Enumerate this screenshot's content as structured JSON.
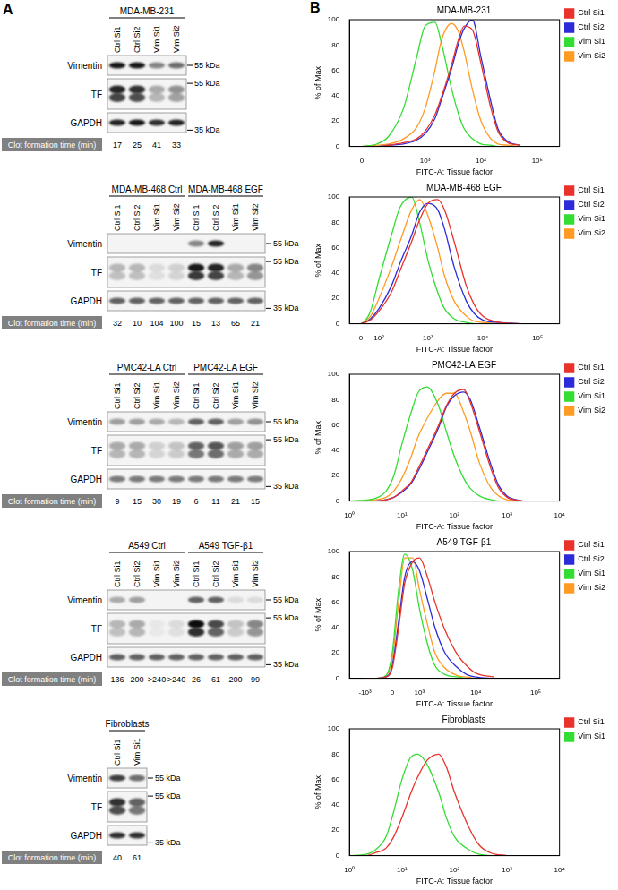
{
  "panel_a": {
    "label": "A",
    "clot_label": "Clot formation time (min)",
    "blots": [
      {
        "groups": [
          {
            "name": "MDA-MB-231",
            "lanes": [
              "Ctrl Si1",
              "Ctrl Si2",
              "Vim Si1",
              "Vim Si2"
            ]
          }
        ],
        "rows": [
          {
            "name": "Vimentin",
            "size_marker": "55 kDa",
            "band_intensity": [
              0.9,
              0.9,
              0.45,
              0.55
            ]
          },
          {
            "name": "TF",
            "size_marker": "55 kDa",
            "band_intensity": [
              0.85,
              0.8,
              0.3,
              0.4
            ]
          },
          {
            "name": "GAPDH",
            "size_marker": "35 kDa",
            "band_intensity": [
              0.85,
              0.9,
              0.8,
              0.85
            ]
          }
        ],
        "clot_times": [
          17,
          25,
          41,
          33
        ]
      },
      {
        "groups": [
          {
            "name": "MDA-MB-468 Ctrl",
            "lanes": [
              "Ctrl Si1",
              "Ctrl Si2",
              "Vim Si1",
              "Vim Si2"
            ]
          },
          {
            "name": "MDA-MB-468 EGF",
            "lanes": [
              "Ctrl Si1",
              "Ctrl Si2",
              "Vim Si1",
              "Vim Si2"
            ]
          }
        ],
        "rows": [
          {
            "name": "Vimentin",
            "size_marker": "55 kDa",
            "band_intensity": [
              0,
              0,
              0,
              0,
              0.45,
              0.85,
              0,
              0
            ]
          },
          {
            "name": "TF",
            "size_marker": "55 kDa",
            "band_intensity": [
              0.25,
              0.25,
              0.1,
              0.15,
              0.9,
              0.85,
              0.3,
              0.45
            ]
          },
          {
            "name": "GAPDH",
            "size_marker": "35 kDa",
            "band_intensity": [
              0.6,
              0.6,
              0.6,
              0.6,
              0.6,
              0.6,
              0.6,
              0.6
            ]
          }
        ],
        "clot_times": [
          32,
          10,
          104,
          100,
          15,
          13,
          65,
          21
        ]
      },
      {
        "groups": [
          {
            "name": "PMC42-LA Ctrl",
            "lanes": [
              "Ctrl Si1",
              "Ctrl Si2",
              "Vim Si1",
              "Vim Si2"
            ]
          },
          {
            "name": "PMC42-LA EGF",
            "lanes": [
              "Ctrl Si1",
              "Ctrl Si2",
              "Vim Si1",
              "Vim Si2"
            ]
          }
        ],
        "rows": [
          {
            "name": "Vimentin",
            "size_marker": "55 kDa",
            "band_intensity": [
              0.35,
              0.35,
              0.3,
              0.25,
              0.6,
              0.6,
              0.35,
              0.4
            ]
          },
          {
            "name": "TF",
            "size_marker": "55 kDa",
            "band_intensity": [
              0.3,
              0.3,
              0.15,
              0.2,
              0.6,
              0.65,
              0.35,
              0.35
            ]
          },
          {
            "name": "GAPDH",
            "size_marker": "35 kDa",
            "band_intensity": [
              0.5,
              0.5,
              0.5,
              0.5,
              0.5,
              0.5,
              0.5,
              0.5
            ]
          }
        ],
        "clot_times": [
          9,
          15,
          30,
          19,
          6,
          11,
          21,
          15
        ]
      },
      {
        "groups": [
          {
            "name": "A549 Ctrl",
            "lanes": [
              "Ctrl Si1",
              "Ctrl Si2",
              "Vim Si1",
              "Vim Si2"
            ]
          },
          {
            "name": "A549 TGF-β1",
            "lanes": [
              "Ctrl Si1",
              "Ctrl Si2",
              "Vim Si1",
              "Vim Si2"
            ]
          }
        ],
        "rows": [
          {
            "name": "Vimentin",
            "size_marker": "55 kDa",
            "band_intensity": [
              0.3,
              0.35,
              0,
              0,
              0.6,
              0.6,
              0.1,
              0.1
            ]
          },
          {
            "name": "TF",
            "size_marker": "55 kDa",
            "band_intensity": [
              0.25,
              0.3,
              0.05,
              0.1,
              0.95,
              0.7,
              0.2,
              0.45
            ]
          },
          {
            "name": "GAPDH",
            "size_marker": "35 kDa",
            "band_intensity": [
              0.6,
              0.6,
              0.6,
              0.6,
              0.6,
              0.6,
              0.6,
              0.6
            ]
          }
        ],
        "clot_times": [
          136,
          200,
          ">240",
          ">240",
          26,
          61,
          200,
          99
        ]
      },
      {
        "groups": [
          {
            "name": "Fibroblasts",
            "lanes": [
              "Ctrl Si1",
              "Vim Si1"
            ]
          }
        ],
        "rows": [
          {
            "name": "Vimentin",
            "size_marker": "55 kDa",
            "band_intensity": [
              0.75,
              0.55
            ]
          },
          {
            "name": "TF",
            "size_marker": "55 kDa",
            "band_intensity": [
              0.8,
              0.6
            ]
          },
          {
            "name": "GAPDH",
            "size_marker": "35 kDa",
            "band_intensity": [
              0.8,
              0.8
            ]
          }
        ],
        "clot_times": [
          40,
          61
        ]
      }
    ]
  },
  "panel_b": {
    "label": "B"
  },
  "chart_data": [
    {
      "type": "line",
      "title": "MDA-MB-231",
      "x_label": "FITC-A: Tissue factor",
      "y_label": "% of Max",
      "x": [
        0,
        100,
        200,
        400,
        700,
        1000,
        1500,
        2000,
        3000,
        4000,
        5000,
        7000,
        10000,
        15000,
        20000,
        30000,
        50000
      ],
      "series": [
        {
          "name": "Ctrl Si1",
          "color": "#e8322b",
          "values": [
            0,
            0,
            1,
            3,
            6,
            12,
            25,
            40,
            65,
            85,
            95,
            92,
            65,
            30,
            12,
            3,
            1
          ]
        },
        {
          "name": "Ctrl Si2",
          "color": "#2b2bd9",
          "values": [
            0,
            0,
            1,
            2,
            5,
            10,
            22,
            38,
            62,
            82,
            93,
            100,
            70,
            35,
            14,
            4,
            1
          ]
        },
        {
          "name": "Vim Si1",
          "color": "#33dd33",
          "values": [
            0,
            2,
            8,
            30,
            70,
            95,
            98,
            80,
            45,
            25,
            14,
            6,
            2,
            1,
            0,
            0,
            0
          ]
        },
        {
          "name": "Vim Si2",
          "color": "#ff9a22",
          "values": [
            0,
            1,
            2,
            6,
            15,
            30,
            60,
            85,
            97,
            90,
            75,
            45,
            20,
            6,
            2,
            1,
            0
          ]
        }
      ],
      "xlim": [
        -80,
        250000
      ],
      "xticks": [
        0,
        {
          "value": 1000,
          "label": "10³"
        },
        {
          "value": 10000,
          "label": "10⁴"
        },
        {
          "value": 100000,
          "label": "10⁵"
        }
      ],
      "ylim": [
        0,
        100
      ],
      "yticks": [
        0,
        20,
        40,
        60,
        80,
        100
      ],
      "log": "x",
      "grid": false,
      "legend": "right"
    },
    {
      "type": "line",
      "title": "MDA-MB-468 EGF",
      "x_label": "FITC-A: Tissue factor",
      "y_label": "% of Max",
      "x": [
        0,
        20,
        50,
        100,
        200,
        300,
        500,
        700,
        1000,
        1500,
        2000,
        3000,
        5000,
        7000,
        10000,
        20000,
        50000
      ],
      "series": [
        {
          "name": "Ctrl Si1",
          "color": "#e8322b",
          "values": [
            0,
            1,
            3,
            10,
            25,
            42,
            65,
            82,
            95,
            98,
            90,
            65,
            30,
            15,
            6,
            1,
            0
          ]
        },
        {
          "name": "Ctrl Si2",
          "color": "#2b2bd9",
          "values": [
            0,
            1,
            4,
            12,
            30,
            48,
            70,
            88,
            95,
            90,
            75,
            45,
            18,
            8,
            3,
            1,
            0
          ]
        },
        {
          "name": "Vim Si1",
          "color": "#33dd33",
          "values": [
            0,
            2,
            10,
            35,
            70,
            92,
            100,
            80,
            50,
            25,
            12,
            4,
            1,
            0,
            0,
            0,
            0
          ]
        },
        {
          "name": "Vim Si2",
          "color": "#ff9a22",
          "values": [
            0,
            2,
            6,
            20,
            45,
            65,
            90,
            98,
            85,
            60,
            38,
            18,
            6,
            2,
            1,
            0,
            0
          ]
        }
      ],
      "xlim": [
        -60,
        250000
      ],
      "xticks": [
        0,
        {
          "value": 100,
          "label": "10²"
        },
        {
          "value": 1000,
          "label": "10³"
        },
        {
          "value": 10000,
          "label": "10⁴"
        },
        {
          "value": 100000,
          "label": "10⁵"
        }
      ],
      "ylim": [
        0,
        100
      ],
      "yticks": [
        0,
        20,
        40,
        60,
        80,
        100
      ],
      "log": "x",
      "grid": false,
      "legend": "right"
    },
    {
      "type": "line",
      "title": "PMC42-LA EGF",
      "x_label": "FITC-A: Tissue factor",
      "y_label": "% of Max",
      "x": [
        1,
        3,
        5,
        7,
        10,
        15,
        20,
        30,
        50,
        70,
        100,
        150,
        200,
        300,
        500,
        700,
        1000,
        2000
      ],
      "series": [
        {
          "name": "Ctrl Si1",
          "color": "#e8322b",
          "values": [
            0,
            0,
            1,
            3,
            8,
            15,
            25,
            40,
            60,
            75,
            85,
            88,
            78,
            55,
            25,
            10,
            3,
            0
          ]
        },
        {
          "name": "Ctrl Si2",
          "color": "#2b2bd9",
          "values": [
            0,
            0,
            1,
            3,
            7,
            14,
            23,
            38,
            58,
            74,
            83,
            86,
            80,
            58,
            28,
            12,
            4,
            0
          ]
        },
        {
          "name": "Vim Si1",
          "color": "#33dd33",
          "values": [
            0,
            2,
            8,
            20,
            45,
            70,
            85,
            90,
            75,
            55,
            35,
            18,
            10,
            4,
            1,
            0,
            0,
            0
          ]
        },
        {
          "name": "Vim Si2",
          "color": "#ff9a22",
          "values": [
            0,
            1,
            3,
            8,
            18,
            35,
            50,
            65,
            80,
            85,
            85,
            70,
            55,
            30,
            10,
            4,
            1,
            0
          ]
        }
      ],
      "xlim": [
        1,
        10000
      ],
      "xticks": [
        {
          "value": 1,
          "label": "10⁰"
        },
        {
          "value": 10,
          "label": "10¹"
        },
        {
          "value": 100,
          "label": "10²"
        },
        {
          "value": 1000,
          "label": "10³"
        },
        {
          "value": 10000,
          "label": "10⁴"
        }
      ],
      "ylim": [
        0,
        100
      ],
      "yticks": [
        0,
        20,
        40,
        60,
        80,
        100
      ],
      "log": "x",
      "grid": false,
      "legend": "right"
    },
    {
      "type": "line",
      "title": "A549 TGF-β1",
      "x_label": "FITC-A: Tissue factor",
      "y_label": "% of Max",
      "x": [
        -1000,
        -500,
        -200,
        0,
        200,
        400,
        700,
        1000,
        1500,
        2000,
        3000,
        5000,
        7000,
        10000,
        20000
      ],
      "series": [
        {
          "name": "Ctrl Si1",
          "color": "#e8322b",
          "values": [
            0,
            0,
            1,
            8,
            40,
            75,
            92,
            95,
            78,
            60,
            38,
            18,
            10,
            4,
            1
          ]
        },
        {
          "name": "Ctrl Si2",
          "color": "#2b2bd9",
          "values": [
            0,
            0,
            1,
            10,
            45,
            80,
            92,
            85,
            60,
            40,
            20,
            8,
            3,
            1,
            0
          ]
        },
        {
          "name": "Vim Si1",
          "color": "#33dd33",
          "values": [
            0,
            0,
            2,
            20,
            70,
            98,
            85,
            55,
            25,
            10,
            3,
            1,
            0,
            0,
            0
          ]
        },
        {
          "name": "Vim Si2",
          "color": "#ff9a22",
          "values": [
            0,
            0,
            2,
            15,
            60,
            95,
            95,
            70,
            40,
            20,
            8,
            2,
            1,
            0,
            0
          ]
        }
      ],
      "xlim": [
        -2000,
        250000
      ],
      "xticks": [
        {
          "value": -1000,
          "label": "-10³"
        },
        0,
        {
          "value": 1000,
          "label": "10³"
        },
        {
          "value": 10000,
          "label": "10⁴"
        },
        {
          "value": 100000,
          "label": "10⁵"
        }
      ],
      "ylim": [
        0,
        100
      ],
      "yticks": [
        0,
        20,
        40,
        60,
        80,
        100
      ],
      "log": "x",
      "grid": false,
      "legend": "right"
    },
    {
      "type": "line",
      "title": "Fibroblasts",
      "x_label": "FITC-A: Tissue factor",
      "y_label": "% of Max",
      "x": [
        1,
        2,
        3,
        5,
        7,
        10,
        15,
        20,
        30,
        50,
        70,
        100,
        200,
        300,
        500,
        1000
      ],
      "series": [
        {
          "name": "Ctrl Si1",
          "color": "#e8322b",
          "values": [
            0,
            0,
            2,
            6,
            15,
            30,
            50,
            62,
            75,
            80,
            70,
            50,
            20,
            8,
            2,
            0
          ]
        },
        {
          "name": "Vim Si1",
          "color": "#33dd33",
          "values": [
            0,
            1,
            4,
            15,
            35,
            60,
            78,
            80,
            72,
            50,
            30,
            15,
            4,
            1,
            0,
            0
          ]
        }
      ],
      "xlim": [
        1,
        10000
      ],
      "xticks": [
        {
          "value": 1,
          "label": "10⁰"
        },
        {
          "value": 10,
          "label": "10¹"
        },
        {
          "value": 100,
          "label": "10²"
        },
        {
          "value": 1000,
          "label": "10³"
        },
        {
          "value": 10000,
          "label": "10⁴"
        }
      ],
      "ylim": [
        0,
        100
      ],
      "yticks": [
        0,
        20,
        40,
        60,
        80,
        100
      ],
      "log": "x",
      "grid": false,
      "legend": "right"
    }
  ]
}
